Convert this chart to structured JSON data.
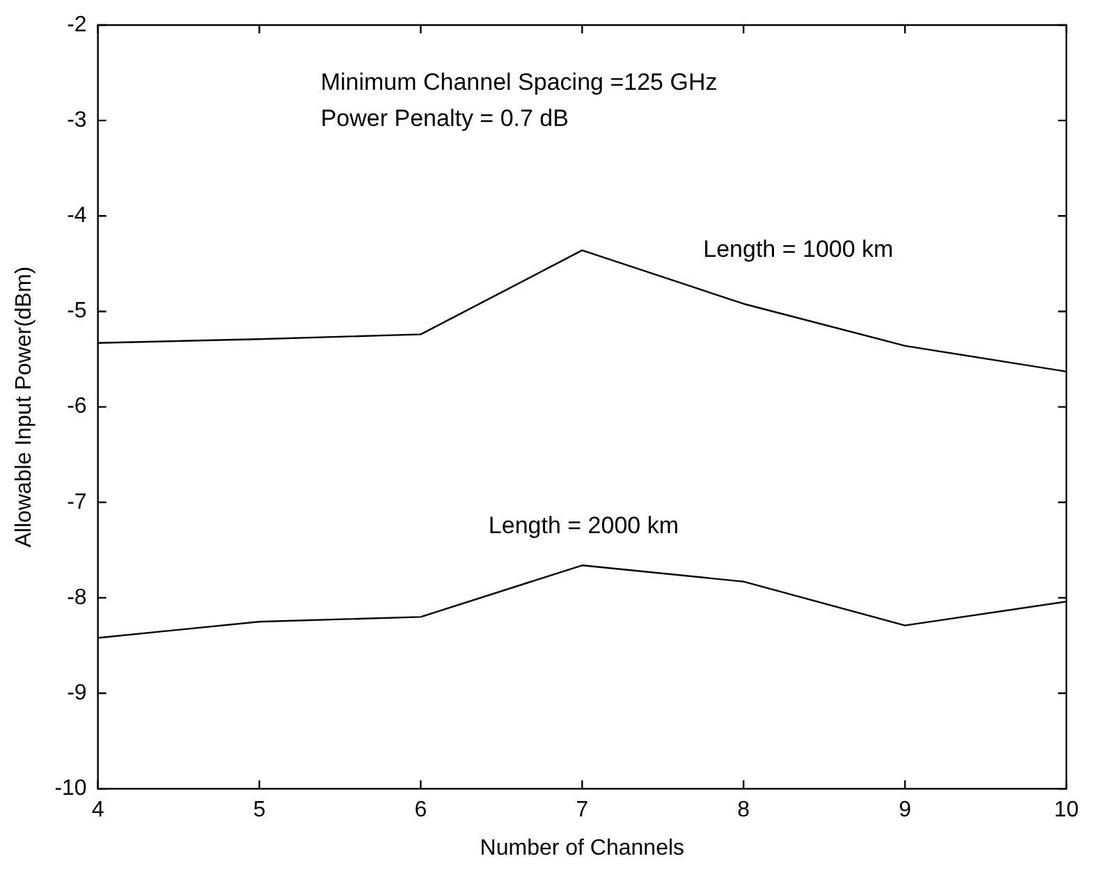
{
  "chart_data": {
    "type": "line",
    "xlabel": "Number of Channels",
    "ylabel": "Allowable Input Power(dBm)",
    "x": [
      4,
      5,
      6,
      7,
      8,
      9,
      10
    ],
    "series": [
      {
        "name": "Length = 1000 km",
        "color": "#000000",
        "values": [
          -5.33,
          -5.29,
          -5.24,
          -4.36,
          -4.92,
          -5.36,
          -5.63
        ]
      },
      {
        "name": "Length = 2000 km",
        "color": "#000000",
        "values": [
          -8.42,
          -8.25,
          -8.2,
          -7.66,
          -7.83,
          -8.29,
          -8.04
        ]
      }
    ],
    "xlim": [
      4,
      10
    ],
    "xticks": [
      4,
      5,
      6,
      7,
      8,
      9,
      10
    ],
    "ylim": [
      -10,
      -2
    ],
    "yticks": [
      -10,
      -9,
      -8,
      -7,
      -6,
      -5,
      -4,
      -3,
      -2
    ],
    "grid": false,
    "legend": false,
    "marker": "none",
    "line_style": "solid",
    "annotations": [
      "Minimum Channel Spacing =125 GHz",
      "Power Penalty = 0.7 dB"
    ]
  }
}
